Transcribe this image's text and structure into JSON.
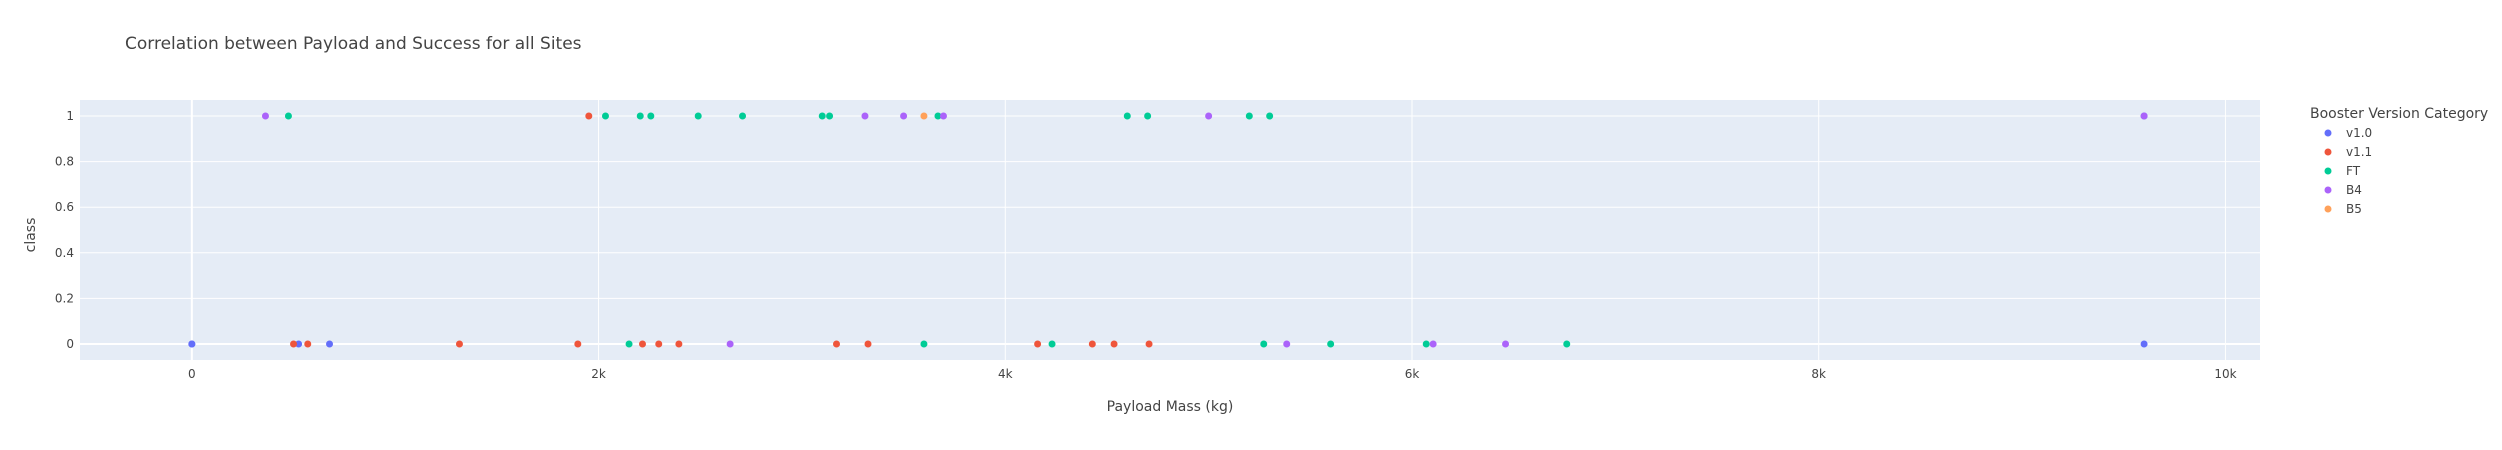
{
  "chart_data": {
    "type": "scatter",
    "title": "Correlation between Payload and Success for all Sites",
    "xlabel": "Payload Mass (kg)",
    "ylabel": "class",
    "xlim": [
      -550,
      10170
    ],
    "ylim": [
      -0.07,
      1.07
    ],
    "x_ticks": [
      {
        "value": 0,
        "label": "0"
      },
      {
        "value": 2000,
        "label": "2k"
      },
      {
        "value": 4000,
        "label": "4k"
      },
      {
        "value": 6000,
        "label": "6k"
      },
      {
        "value": 8000,
        "label": "8k"
      },
      {
        "value": 10000,
        "label": "10k"
      }
    ],
    "y_ticks": [
      {
        "value": 0,
        "label": "0"
      },
      {
        "value": 0.2,
        "label": "0.2"
      },
      {
        "value": 0.4,
        "label": "0.4"
      },
      {
        "value": 0.6,
        "label": "0.6"
      },
      {
        "value": 0.8,
        "label": "0.8"
      },
      {
        "value": 1,
        "label": "1"
      }
    ],
    "grid": true,
    "plot_bg": "#e5ecf6",
    "legend": {
      "title": "Booster Version Category",
      "position": "right"
    },
    "series": [
      {
        "name": "v1.0",
        "color": "#636efa",
        "x": [
          0,
          0,
          525,
          677,
          9600,
          9600
        ],
        "y": [
          0,
          0,
          0,
          0,
          0,
          1
        ]
      },
      {
        "name": "v1.1",
        "color": "#ef553b",
        "x": [
          500,
          570,
          1316,
          1898,
          1952,
          2216,
          2296,
          2395,
          3170,
          3325,
          4159,
          4428,
          4535,
          4707
        ],
        "y": [
          0,
          0,
          0,
          0,
          1,
          0,
          0,
          0,
          0,
          0,
          0,
          0,
          0,
          0
        ]
      },
      {
        "name": "FT",
        "color": "#00cc96",
        "x": [
          475,
          2034,
          2150,
          2205,
          2257,
          2490,
          2708,
          3100,
          3136,
          3600,
          3669,
          4230,
          4600,
          4700,
          5200,
          5271,
          5300,
          5600,
          6070,
          6761
        ],
        "y": [
          1,
          1,
          0,
          1,
          1,
          1,
          1,
          1,
          1,
          0,
          1,
          0,
          1,
          1,
          1,
          0,
          1,
          0,
          0,
          0
        ]
      },
      {
        "name": "B4",
        "color": "#ab63fa",
        "x": [
          362,
          2647,
          3310,
          3500,
          3696,
          5000,
          5384,
          6104,
          6460,
          9600
        ],
        "y": [
          1,
          0,
          1,
          1,
          1,
          1,
          0,
          0,
          0,
          1
        ]
      },
      {
        "name": "B5",
        "color": "#ffa15a",
        "x": [
          3600
        ],
        "y": [
          1
        ]
      }
    ]
  }
}
